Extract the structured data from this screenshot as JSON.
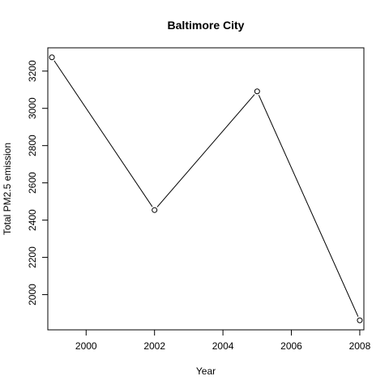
{
  "chart_data": {
    "type": "line",
    "title": "Baltimore City",
    "xlabel": "Year",
    "ylabel": "Total PM2.5 emission",
    "x": [
      1999,
      2002,
      2005,
      2008
    ],
    "series": [
      {
        "values": [
          3274,
          2454,
          3091,
          1862
        ]
      }
    ],
    "xticks": [
      2000,
      2002,
      2004,
      2006,
      2008
    ],
    "yticks": [
      2000,
      2200,
      2400,
      2600,
      2800,
      3000,
      3200
    ],
    "xlim": [
      1998.88,
      2008.12
    ],
    "ylim": [
      1811,
      3325
    ],
    "marker": "open-circle",
    "line_color": "#000000",
    "grid": false,
    "legend": "none"
  }
}
